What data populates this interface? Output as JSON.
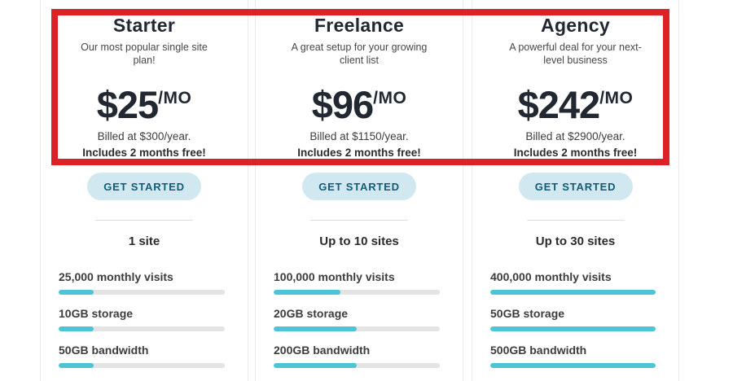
{
  "annotation": {
    "type": "red-highlight-rectangle",
    "color": "#dc2127"
  },
  "colors": {
    "accent_teal": "#4ec5d7",
    "bar_track": "#e4e4e4",
    "button_bg": "#d2e8f0",
    "button_text": "#115b76",
    "heading_text": "#222831"
  },
  "plans": [
    {
      "name": "Starter",
      "description": "Our most popular single site plan!",
      "price": "$25",
      "period": "/MO",
      "billed": "Billed at $300/year.",
      "bonus": "Includes 2 months free!",
      "cta": "GET STARTED",
      "sites": "1 site",
      "features": [
        {
          "label": "25,000 monthly visits",
          "percent": 21
        },
        {
          "label": "10GB storage",
          "percent": 21
        },
        {
          "label": "50GB bandwidth",
          "percent": 21
        }
      ]
    },
    {
      "name": "Freelance",
      "description": "A great setup for your growing client list",
      "price": "$96",
      "period": "/MO",
      "billed": "Billed at $1150/year.",
      "bonus": "Includes 2 months free!",
      "cta": "GET STARTED",
      "sites": "Up to 10 sites",
      "features": [
        {
          "label": "100,000 monthly visits",
          "percent": 40
        },
        {
          "label": "20GB storage",
          "percent": 50
        },
        {
          "label": "200GB bandwidth",
          "percent": 50
        }
      ]
    },
    {
      "name": "Agency",
      "description": "A powerful deal for your next-level business",
      "price": "$242",
      "period": "/MO",
      "billed": "Billed at $2900/year.",
      "bonus": "Includes 2 months free!",
      "cta": "GET STARTED",
      "sites": "Up to 30 sites",
      "features": [
        {
          "label": "400,000 monthly visits",
          "percent": 100
        },
        {
          "label": "50GB storage",
          "percent": 100
        },
        {
          "label": "500GB bandwidth",
          "percent": 100
        }
      ]
    }
  ]
}
